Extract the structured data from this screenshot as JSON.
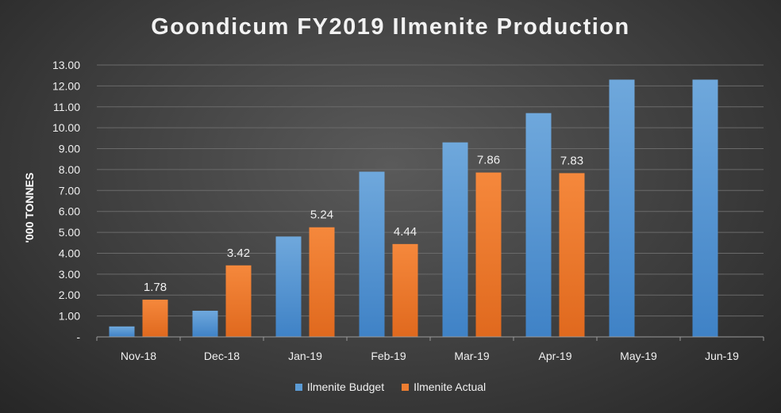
{
  "chart_data": {
    "type": "bar",
    "title": "Goondicum FY2019 Ilmenite Production",
    "ylabel": "'000 TONNES",
    "xlabel": "",
    "ylim": [
      0,
      13
    ],
    "yticks": [
      "-",
      "1.00",
      "2.00",
      "3.00",
      "4.00",
      "5.00",
      "6.00",
      "7.00",
      "8.00",
      "9.00",
      "10.00",
      "11.00",
      "12.00",
      "13.00"
    ],
    "categories": [
      "Nov-18",
      "Dec-18",
      "Jan-19",
      "Feb-19",
      "Mar-19",
      "Apr-19",
      "May-19",
      "Jun-19"
    ],
    "series": [
      {
        "name": "Ilmenite Budget",
        "color": "#5b9bd5",
        "values": [
          0.5,
          1.25,
          4.8,
          7.9,
          9.3,
          10.7,
          12.3,
          12.3
        ],
        "labels": []
      },
      {
        "name": "Ilmenite Actual",
        "color": "#ed7d31",
        "values": [
          1.78,
          3.42,
          5.24,
          4.44,
          7.86,
          7.83,
          null,
          null
        ],
        "labels": [
          "1.78",
          "3.42",
          "5.24",
          "4.44",
          "7.86",
          "7.83",
          "",
          ""
        ]
      }
    ],
    "grid": true,
    "legend_position": "bottom"
  }
}
